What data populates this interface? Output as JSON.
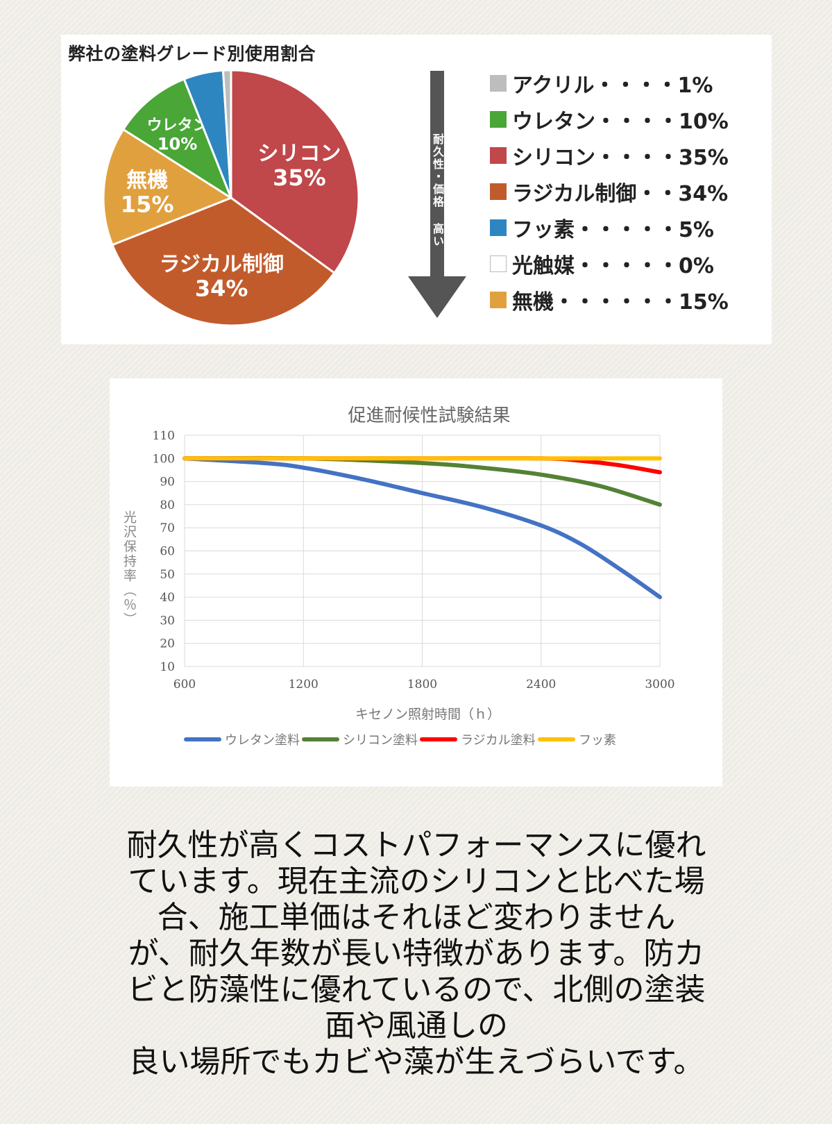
{
  "chart_data": [
    {
      "type": "pie",
      "title": "弊社の塗料グレード別使用割合",
      "slices": [
        {
          "name": "シリコン",
          "value": 35,
          "label": "シリコン",
          "pct": "35%",
          "color": "#c0474a"
        },
        {
          "name": "ラジカル制御",
          "value": 34,
          "label": "ラジカル制御",
          "pct": "34%",
          "color": "#c25b2c"
        },
        {
          "name": "無機",
          "value": 15,
          "label": "無機",
          "pct": "15%",
          "color": "#e1a03e"
        },
        {
          "name": "ウレタン",
          "value": 10,
          "label": "ウレタン",
          "pct": "10%",
          "color": "#49a637"
        },
        {
          "name": "フッ素",
          "value": 5,
          "label": "",
          "pct": "",
          "color": "#2e86c1"
        },
        {
          "name": "光触媒",
          "value": 0,
          "label": "",
          "pct": "",
          "color": "#ffffff"
        },
        {
          "name": "アクリル",
          "value": 1,
          "label": "",
          "pct": "",
          "color": "#bdbdbd"
        }
      ],
      "arrow_text": "耐久性・価格 高い",
      "legend": [
        {
          "text": "アクリル・・・・1%",
          "color": "#bdbdbd"
        },
        {
          "text": "ウレタン・・・・10%",
          "color": "#49a637"
        },
        {
          "text": "シリコン・・・・35%",
          "color": "#c0474a"
        },
        {
          "text": "ラジカル制御・・34%",
          "color": "#c25b2c"
        },
        {
          "text": "フッ素・・・・・5%",
          "color": "#2e86c1"
        },
        {
          "text": "光触媒・・・・・0%",
          "color": "#ffffff"
        },
        {
          "text": "無機・・・・・・15%",
          "color": "#e1a03e"
        }
      ],
      "legend_position": "right"
    },
    {
      "type": "line",
      "title": "促進耐候性試験結果",
      "xlabel": "キセノン照射時間（ｈ）",
      "ylabel": "光沢保持率（％）",
      "xlim": [
        600,
        3000
      ],
      "ylim": [
        10,
        110
      ],
      "x_ticks": [
        600,
        1200,
        1800,
        2400,
        3000
      ],
      "y_ticks": [
        10,
        20,
        30,
        40,
        50,
        60,
        70,
        80,
        90,
        100,
        110
      ],
      "grid": true,
      "legend_position": "bottom",
      "series": [
        {
          "name": "ウレタン塗料",
          "color": "#4472c4",
          "x": [
            600,
            1000,
            1200,
            1500,
            1800,
            2100,
            2400,
            2600,
            2800,
            3000
          ],
          "y": [
            100,
            98,
            96,
            91,
            85,
            79,
            71,
            63,
            52,
            40
          ]
        },
        {
          "name": "シリコン塗料",
          "color": "#548235",
          "x": [
            600,
            1200,
            1800,
            2100,
            2400,
            2700,
            3000
          ],
          "y": [
            100,
            100,
            98,
            96,
            93,
            88,
            80
          ]
        },
        {
          "name": "ラジカル塗料",
          "color": "#ff0000",
          "x": [
            600,
            1200,
            1800,
            2400,
            2600,
            2800,
            3000
          ],
          "y": [
            100,
            100,
            100,
            100,
            99,
            97,
            94
          ]
        },
        {
          "name": "フッ素",
          "color": "#ffc000",
          "x": [
            600,
            1200,
            1800,
            2400,
            3000
          ],
          "y": [
            100,
            100,
            100,
            100,
            100
          ]
        }
      ]
    }
  ],
  "description_lines": [
    "耐久性が高くコストパフォーマンスに優れ",
    "ています。現在主流のシリコンと比べた場",
    "合、施工単価はそれほど変わりません",
    "が、耐久年数が長い特徴があります。防カ",
    "ビと防藻性に優れているので、北側の塗装",
    "面や風通しの",
    "良い場所でもカビや藻が生えづらいです。"
  ]
}
